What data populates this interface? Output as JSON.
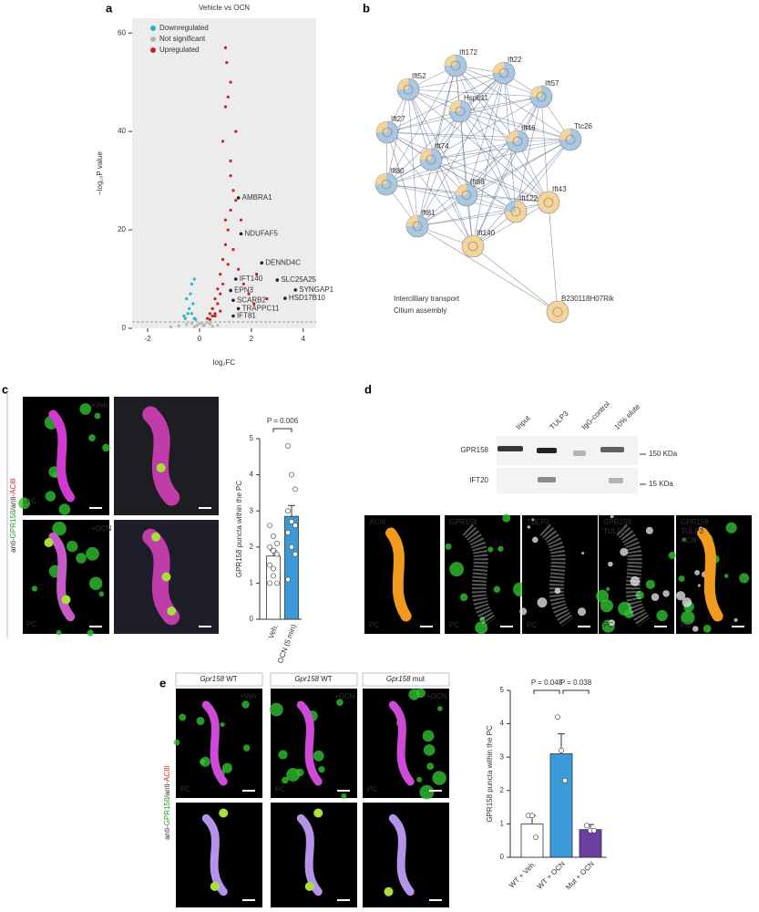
{
  "panel_labels": [
    "a",
    "b",
    "c",
    "d",
    "e"
  ],
  "chart_data": [
    {
      "type": "scatter",
      "title": "Vehicle vs OCN",
      "xlabel": "log₂FC",
      "ylabel": "−log₁₀P value",
      "xlim": [
        -2.6,
        4.5
      ],
      "ylim": [
        0,
        63
      ],
      "xticks": [
        -2,
        0,
        2,
        4
      ],
      "yticks": [
        0,
        20,
        40,
        60
      ],
      "legend": "upper left",
      "threshold": 1.3,
      "series": [
        {
          "name": "Downregulated",
          "color": "#2ab0c5",
          "x": [
            -0.2,
            -0.3,
            -0.4,
            -0.5,
            -0.35,
            -0.25,
            -0.45,
            -0.6,
            -0.15,
            -0.3,
            -0.2,
            -0.55
          ],
          "values": [
            2,
            3,
            4,
            6,
            7,
            5,
            3,
            2.5,
            1.8,
            9,
            10,
            2
          ]
        },
        {
          "name": "Not significant",
          "color": "#b5b5b5",
          "x": [
            -0.8,
            -0.5,
            -0.3,
            -0.1,
            0,
            0.1,
            0.2,
            0.3,
            0.4,
            0.5,
            -0.2,
            0.15,
            -1.1,
            0.7
          ],
          "values": [
            0.5,
            0.8,
            1,
            0.6,
            0.9,
            1.1,
            0.7,
            1.2,
            0.9,
            0.4,
            0.3,
            0.5,
            0.3,
            0.6
          ]
        },
        {
          "name": "Upregulated",
          "color": "#c8231d",
          "x": [
            0.3,
            0.4,
            0.5,
            0.6,
            0.7,
            0.8,
            0.9,
            1.0,
            1.1,
            1.2,
            1.3,
            0.5,
            0.7,
            0.9,
            1.1,
            1.3,
            1.5,
            1.7,
            1.9,
            2.1,
            0.6,
            0.8,
            1.0,
            1.2,
            1.4,
            0.4,
            0.6,
            0.8,
            1.0,
            1.2,
            1.0,
            1.05,
            1.1,
            0.9,
            1.2,
            1.4,
            1.6,
            2.2,
            2.6,
            0.5
          ],
          "values": [
            2,
            3,
            4,
            6,
            8,
            11,
            14,
            17,
            20,
            24,
            28,
            2.5,
            5,
            9,
            13,
            16,
            12,
            9,
            7,
            5,
            3,
            7,
            22,
            34,
            40,
            1.8,
            2.5,
            3.5,
            45,
            50,
            57,
            54,
            47,
            38,
            31,
            26,
            22,
            11,
            6,
            4
          ]
        }
      ],
      "annotations": [
        {
          "label": "AMBRA1",
          "x": 1.5,
          "y": 26.5
        },
        {
          "label": "NDUFAF5",
          "x": 1.6,
          "y": 19.2
        },
        {
          "label": "DENND4C",
          "x": 2.4,
          "y": 13.3
        },
        {
          "label": "SLC25A25",
          "x": 3.0,
          "y": 9.8
        },
        {
          "label": "SYNGAP1",
          "x": 3.7,
          "y": 7.8
        },
        {
          "label": "HSD17B10",
          "x": 3.3,
          "y": 6.1
        },
        {
          "label": "IFT140",
          "x": 1.4,
          "y": 10
        },
        {
          "label": "EPN3",
          "x": 1.2,
          "y": 7.7
        },
        {
          "label": "SCARB2",
          "x": 1.3,
          "y": 5.7
        },
        {
          "label": "TRAPPC11",
          "x": 1.5,
          "y": 4
        },
        {
          "label": "IFT81",
          "x": 1.3,
          "y": 2.5
        }
      ]
    },
    {
      "type": "bar",
      "ylabel": "GPR158 puncta within the PC",
      "categories": [
        "Veh.",
        "OCN (5 min)"
      ],
      "values": [
        1.75,
        2.85
      ],
      "errors": [
        0.15,
        0.3
      ],
      "colors": [
        "#ffffff",
        "#3a9ad9"
      ],
      "points": [
        [
          2.6,
          2.3,
          2.1,
          2.0,
          1.9,
          1.8,
          1.5,
          1.4,
          1.0,
          1.0,
          1.2
        ],
        [
          4.8,
          4.0,
          3.6,
          3.0,
          2.7,
          2.6,
          2.4,
          2.0,
          1.8,
          1.1
        ]
      ],
      "ylim": [
        0,
        5
      ],
      "yticks": [
        0,
        1,
        2,
        3,
        4,
        5
      ],
      "annotations": [
        "P = 0.006"
      ]
    },
    {
      "type": "bar",
      "ylabel": "GPR158 puncta within the PC",
      "categories": [
        "WT + Veh.",
        "WT + OCN",
        "Mut + OCN"
      ],
      "values": [
        1.0,
        3.1,
        0.83
      ],
      "errors": [
        0.25,
        0.6,
        0.15
      ],
      "colors": [
        "#ffffff",
        "#3a9ad9",
        "#6b3fa0"
      ],
      "points": [
        [
          1.25,
          1.25,
          0.6
        ],
        [
          4.2,
          3.2,
          2.3
        ],
        [
          0.95,
          0.8,
          0.8
        ]
      ],
      "ylim": [
        0,
        5
      ],
      "yticks": [
        0,
        1,
        2,
        3,
        4,
        5
      ],
      "annotations": [
        "P = 0.048",
        "P = 0.038"
      ]
    }
  ],
  "network": {
    "nodes": [
      {
        "label": "Ift172",
        "groups": [
          0,
          1
        ]
      },
      {
        "label": "Ift22",
        "groups": [
          0,
          1
        ]
      },
      {
        "label": "Ift52",
        "groups": [
          0,
          1
        ]
      },
      {
        "label": "Ift57",
        "groups": [
          0,
          1
        ]
      },
      {
        "label": "Hspb11",
        "groups": [
          0,
          1
        ]
      },
      {
        "label": "Ift27",
        "groups": [
          0,
          1
        ]
      },
      {
        "label": "Ttc26",
        "groups": [
          0,
          1
        ]
      },
      {
        "label": "Ift46",
        "groups": [
          0,
          1
        ]
      },
      {
        "label": "Ift74",
        "groups": [
          0,
          1
        ]
      },
      {
        "label": "Ift80",
        "groups": [
          0,
          1
        ]
      },
      {
        "label": "Ift88",
        "groups": [
          0,
          1
        ]
      },
      {
        "label": "Ift43",
        "groups": [
          1
        ]
      },
      {
        "label": "Ift122",
        "groups": [
          1,
          0
        ]
      },
      {
        "label": "Ift81",
        "groups": [
          0,
          1
        ]
      },
      {
        "label": "Ift140",
        "groups": [
          1
        ]
      },
      {
        "label": "B230118H07Rik",
        "groups": [
          1
        ]
      }
    ],
    "legend": [
      {
        "name": "Intercilliary transport",
        "color": "#3a78b5",
        "fill": "#a9c6e2"
      },
      {
        "name": "Cilium assembly",
        "color": "#e8a846",
        "fill": "#f3d49c"
      }
    ]
  },
  "panel_c": {
    "stain": [
      "anti-",
      "GPR158",
      "/anti-",
      "ACIII"
    ],
    "conditions": [
      "+Veh",
      "+OCN"
    ],
    "pc": "PC"
  },
  "western": {
    "lanes": [
      "Input",
      "TULP3",
      "IgG-control",
      "10% elute"
    ],
    "rows": [
      "GPR158",
      "IFT20"
    ],
    "sizes": [
      "150 KDa",
      "15 KDa"
    ]
  },
  "panel_d": {
    "labels": [
      [
        {
          "text": "ACIII",
          "color": "#f29a1e"
        }
      ],
      [
        {
          "text": "GPR158",
          "color": "#3fd23f"
        }
      ],
      [
        {
          "text": "TULP3",
          "color": "#ffffff"
        }
      ],
      [
        {
          "text": "GPR158",
          "color": "#3fd23f"
        },
        {
          "text": "TULP3",
          "color": "#ffffff"
        }
      ],
      [
        {
          "text": "GPR158",
          "color": "#3fd23f"
        },
        {
          "text": "TULP3",
          "color": "#ffffff"
        },
        {
          "text": "ACIII",
          "color": "#f29a1e"
        }
      ]
    ],
    "pc": "PC"
  },
  "panel_e": {
    "headers": [
      [
        "Gpr158",
        " WT"
      ],
      [
        "Gpr158",
        " WT"
      ],
      [
        "Gpr158",
        " mut"
      ]
    ],
    "conditions": [
      "+Veh",
      "+OCN",
      "+OCN"
    ],
    "stain": [
      "anti-",
      "GPR158",
      "/anti-",
      "ACIII"
    ],
    "pc": "PC"
  }
}
